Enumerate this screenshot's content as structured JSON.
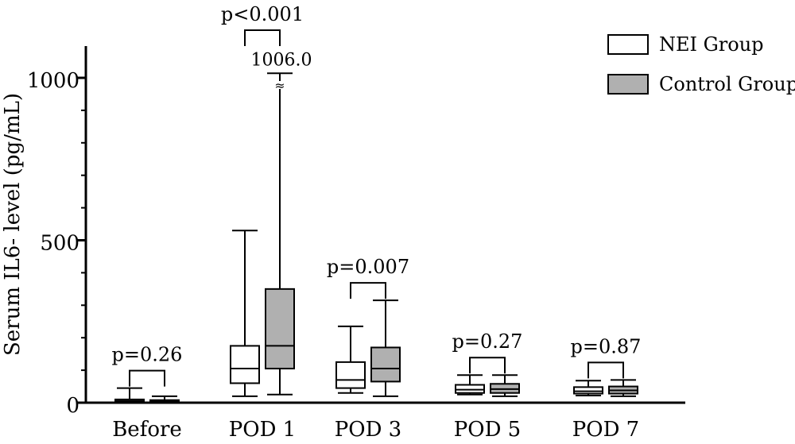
{
  "chart_data": {
    "type": "boxplot",
    "ylabel": "Serum IL6- level (pg/mL)",
    "ylim": [
      0,
      1100
    ],
    "y_ticks": [
      0,
      500,
      1000
    ],
    "y_tick_labels": [
      "0",
      "500",
      "1000"
    ],
    "categories": [
      "Before",
      "POD 1",
      "POD 3",
      "POD 5",
      "POD 7"
    ],
    "legend_position": "top-right",
    "series": [
      {
        "name": "NEI Group",
        "fill": "#ffffff",
        "boxes": [
          {
            "min": 0,
            "q1": 2,
            "median": 5,
            "q3": 10,
            "max": 45
          },
          {
            "min": 20,
            "q1": 60,
            "median": 105,
            "q3": 175,
            "max": 530
          },
          {
            "min": 30,
            "q1": 45,
            "median": 70,
            "q3": 125,
            "max": 235
          },
          {
            "min": 25,
            "q1": 30,
            "median": 40,
            "q3": 55,
            "max": 85
          },
          {
            "min": 22,
            "q1": 28,
            "median": 35,
            "q3": 48,
            "max": 68
          }
        ]
      },
      {
        "name": "Control Group",
        "fill": "#b0b0b0",
        "boxes": [
          {
            "min": 0,
            "q1": 2,
            "median": 5,
            "q3": 8,
            "max": 20
          },
          {
            "min": 25,
            "q1": 105,
            "median": 175,
            "q3": 350,
            "max": 1006
          },
          {
            "min": 20,
            "q1": 65,
            "median": 105,
            "q3": 170,
            "max": 315
          },
          {
            "min": 20,
            "q1": 30,
            "median": 42,
            "q3": 58,
            "max": 85
          },
          {
            "min": 20,
            "q1": 28,
            "median": 38,
            "q3": 50,
            "max": 70
          }
        ]
      }
    ],
    "p_values": [
      "p=0.26",
      "p<0.001",
      "p=0.007",
      "p=0.27",
      "p=0.87"
    ],
    "annotations": [
      {
        "text": "1006.0",
        "category": "POD 1",
        "series": "Control Group",
        "value": 1006.0,
        "axis_break": true
      }
    ]
  }
}
